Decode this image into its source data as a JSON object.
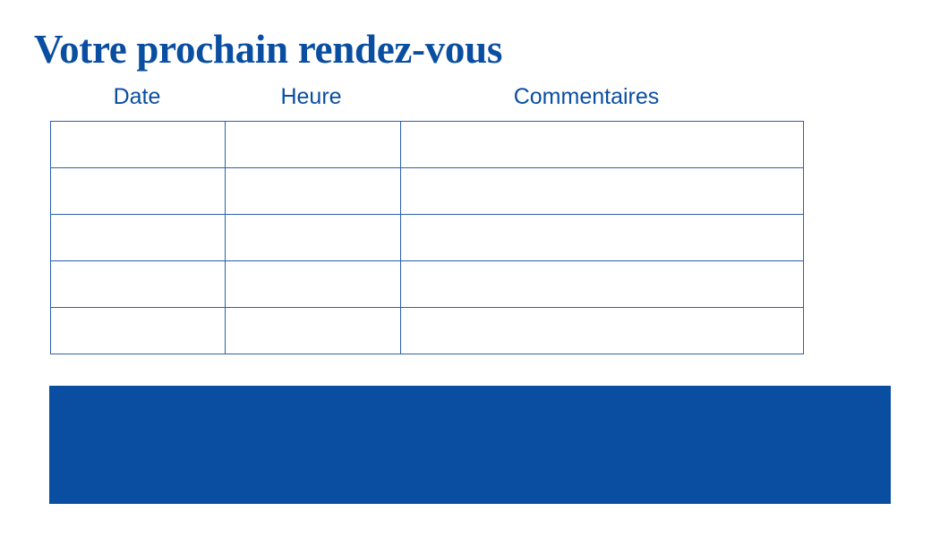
{
  "title": "Votre prochain rendez-vous",
  "table": {
    "headers": [
      "Date",
      "Heure",
      "Commentaires"
    ],
    "rows": [
      [
        "",
        "",
        ""
      ],
      [
        "",
        "",
        ""
      ],
      [
        "",
        "",
        ""
      ],
      [
        "",
        "",
        ""
      ],
      [
        "",
        "",
        ""
      ]
    ]
  },
  "colors": {
    "brand_blue": "#0a4ea2",
    "grid_line": "#2a5fae"
  }
}
